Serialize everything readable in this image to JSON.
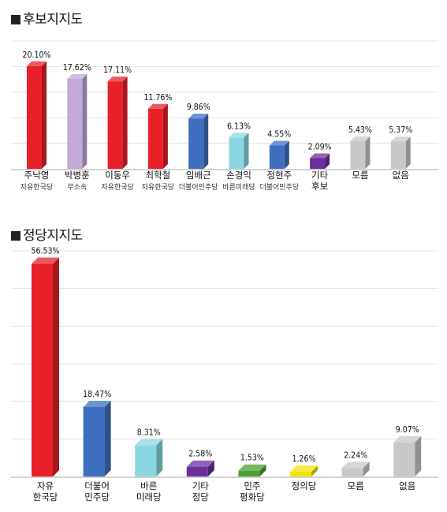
{
  "chart_data": [
    {
      "type": "bar",
      "title": "후보지지도",
      "unit": "%",
      "categories": [
        {
          "name": "주낙영",
          "party": "자유한국당"
        },
        {
          "name": "박병훈",
          "party": "무소속"
        },
        {
          "name": "이동우",
          "party": "자유한국당"
        },
        {
          "name": "최학철",
          "party": "자유한국당"
        },
        {
          "name": "임배근",
          "party": "더불어민주당"
        },
        {
          "name": "손경익",
          "party": "바른미래당"
        },
        {
          "name": "정현주",
          "party": "더불어민주당"
        },
        {
          "name": "기타\n후보",
          "party": ""
        },
        {
          "name": "모름",
          "party": ""
        },
        {
          "name": "없음",
          "party": ""
        }
      ],
      "values": [
        20.1,
        17.62,
        17.11,
        11.76,
        9.86,
        6.13,
        4.55,
        2.09,
        5.43,
        5.37
      ],
      "labels": [
        "20.10%",
        "17.62%",
        "17.11%",
        "11.76%",
        "9.86%",
        "6.13%",
        "4.55%",
        "2.09%",
        "5.43%",
        "5.37%"
      ],
      "colors": [
        "#e8202a",
        "#c3a9d6",
        "#e8202a",
        "#e8202a",
        "#3e6fbe",
        "#8ad7e2",
        "#3e6fbe",
        "#6b2f9e",
        "#c8c8c8",
        "#c8c8c8"
      ],
      "ylim": [
        0,
        25
      ],
      "grid": true
    },
    {
      "type": "bar",
      "title": "정당지지도",
      "unit": "%",
      "categories": [
        {
          "name": "자유\n한국당"
        },
        {
          "name": "더불어\n민주당"
        },
        {
          "name": "바른\n미래당"
        },
        {
          "name": "기타\n정당"
        },
        {
          "name": "민주\n평화당"
        },
        {
          "name": "정의당"
        },
        {
          "name": "모름"
        },
        {
          "name": "없음"
        }
      ],
      "values": [
        56.53,
        18.47,
        8.31,
        2.58,
        1.53,
        1.26,
        2.24,
        9.07
      ],
      "labels": [
        "56.53%",
        "18.47%",
        "8.31%",
        "2.58%",
        "1.53%",
        "1.26%",
        "2.24%",
        "9.07%"
      ],
      "colors": [
        "#e8202a",
        "#3e6fbe",
        "#8ad7e2",
        "#6b2f9e",
        "#4f9e34",
        "#f2e500",
        "#c8c8c8",
        "#c8c8c8"
      ],
      "ylim": [
        0,
        60
      ],
      "grid": true
    }
  ]
}
